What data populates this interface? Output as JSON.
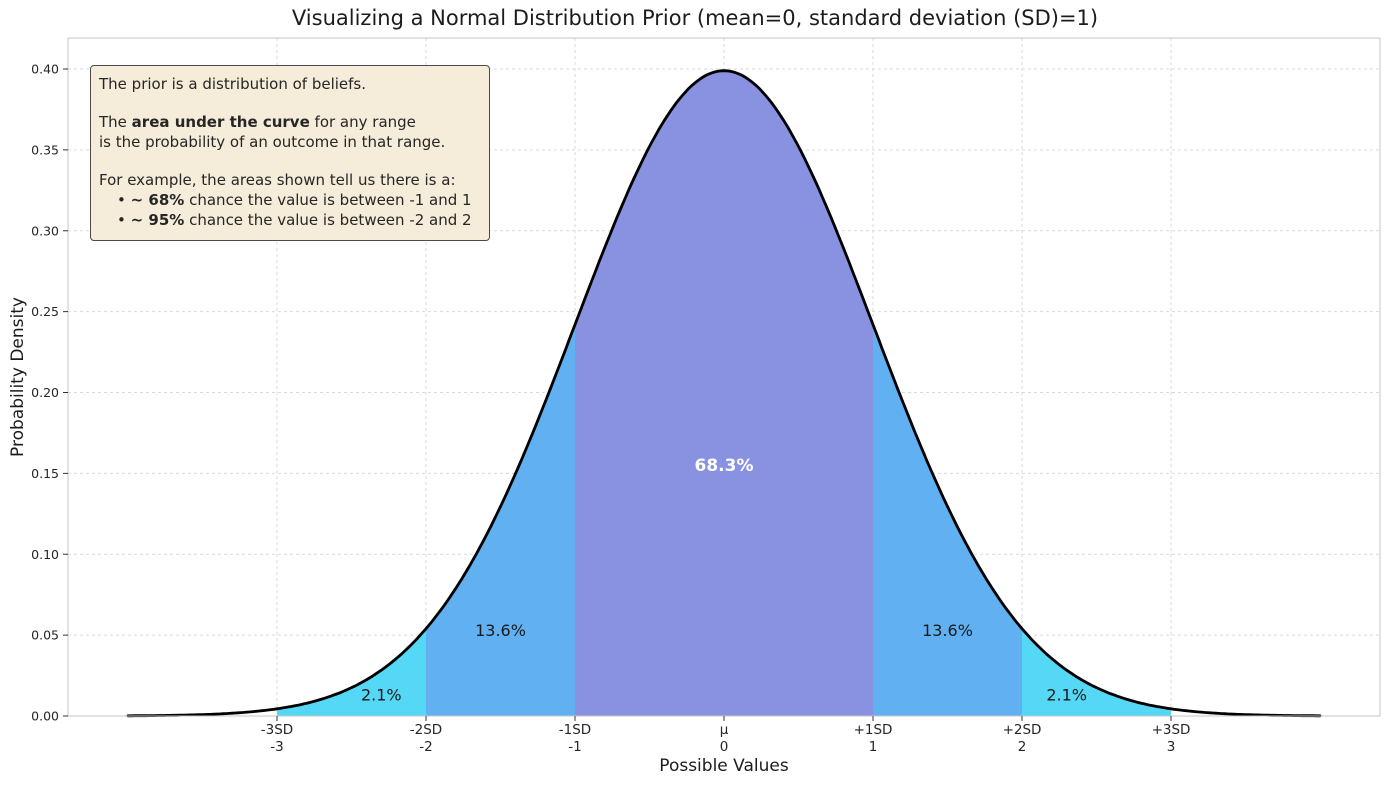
{
  "chart_data": {
    "type": "area",
    "title": "Visualizing a Normal Distribution Prior (mean=0, standard deviation (SD)=1)",
    "xlabel": "Possible Values",
    "ylabel": "Probability Density",
    "xlim": [
      -4.4,
      4.4
    ],
    "ylim": [
      0,
      0.419
    ],
    "grid": true,
    "distribution": {
      "type": "normal",
      "mean": 0,
      "sd": 1,
      "peak_density": 0.3989
    },
    "curve": {
      "x_min": -4,
      "x_max": 4,
      "color": "#000000",
      "width": 2.8
    },
    "x_ticks": [
      {
        "x": -3,
        "sd_label": "-3SD",
        "value_label": "-3"
      },
      {
        "x": -2,
        "sd_label": "-2SD",
        "value_label": "-2"
      },
      {
        "x": -1,
        "sd_label": "-1SD",
        "value_label": "-1"
      },
      {
        "x": 0,
        "sd_label": "μ",
        "value_label": "0"
      },
      {
        "x": 1,
        "sd_label": "+1SD",
        "value_label": "1"
      },
      {
        "x": 2,
        "sd_label": "+2SD",
        "value_label": "2"
      },
      {
        "x": 3,
        "sd_label": "+3SD",
        "value_label": "3"
      }
    ],
    "y_ticks": [
      "0.00",
      "0.05",
      "0.10",
      "0.15",
      "0.20",
      "0.25",
      "0.30",
      "0.35",
      "0.40"
    ],
    "regions": [
      {
        "from": -1,
        "to": 1,
        "probability_label": "68.3%",
        "color": "#8892e0",
        "label_x": 0,
        "label_y": 0.155,
        "label_color": "#ffffff",
        "bold": true
      },
      {
        "from": -2,
        "to": -1,
        "probability_label": "13.6%",
        "color": "#60b0f2",
        "label_x": -1.5,
        "label_y": 0.053,
        "label_color": "#1a1a1a",
        "bold": false
      },
      {
        "from": 1,
        "to": 2,
        "probability_label": "13.6%",
        "color": "#60b0f2",
        "label_x": 1.5,
        "label_y": 0.053,
        "label_color": "#1a1a1a",
        "bold": false
      },
      {
        "from": -3,
        "to": -2,
        "probability_label": "2.1%",
        "color": "#55d8f5",
        "label_x": -2.3,
        "label_y": 0.013,
        "label_color": "#1a1a1a",
        "bold": false
      },
      {
        "from": 2,
        "to": 3,
        "probability_label": "2.1%",
        "color": "#55d8f5",
        "label_x": 2.3,
        "label_y": 0.013,
        "label_color": "#1a1a1a",
        "bold": false
      }
    ]
  },
  "annotation": {
    "intro": "The prior is a distribution of beliefs.",
    "para2_pre": "The ",
    "para2_bold": "area under the curve",
    "para2_post": " for any range",
    "para2_line2": "is the probability of an outcome in that range.",
    "para3": "For example, the areas shown tell us there is a:",
    "bullet_char": "•",
    "bullets": [
      {
        "bold": "~ 68%",
        "text": " chance the value is between -1 and 1"
      },
      {
        "bold": "~ 95%",
        "text": " chance the value is between -2 and 2"
      }
    ]
  }
}
